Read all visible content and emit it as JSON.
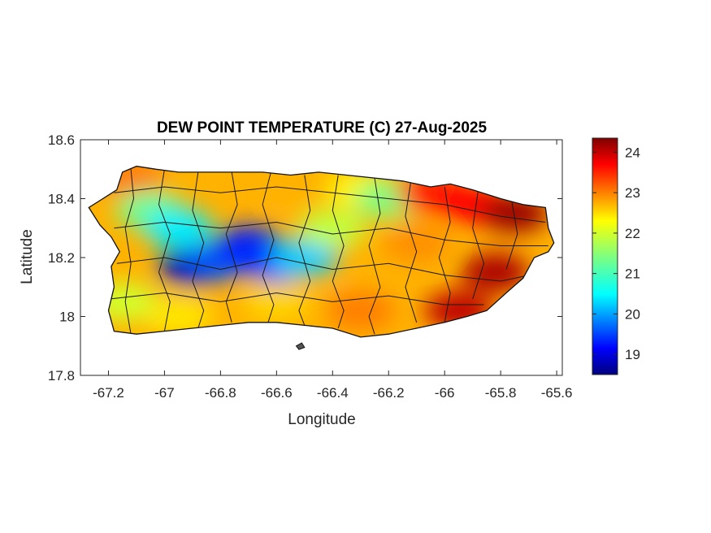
{
  "chart_data": {
    "type": "heatmap",
    "title": "DEW POINT TEMPERATURE (C) 27-Aug-2025",
    "xlabel": "Longitude",
    "ylabel": "Latitude",
    "xlim": [
      -67.3,
      -65.58
    ],
    "ylim": [
      17.8,
      18.6
    ],
    "x_ticks": [
      -67.2,
      -67,
      -66.8,
      -66.6,
      -66.4,
      -66.2,
      -66,
      -65.8,
      -65.6
    ],
    "x_tick_labels": [
      "-67.2",
      "-67",
      "-66.8",
      "-66.6",
      "-66.4",
      "-66.2",
      "-66",
      "-65.8",
      "-65.6"
    ],
    "y_ticks": [
      17.8,
      18,
      18.2,
      18.4,
      18.6
    ],
    "y_tick_labels": [
      "17.8",
      "18",
      "18.2",
      "18.4",
      "18.6"
    ],
    "colormap": "jet",
    "colorbar": {
      "range": [
        18.5,
        24.35
      ],
      "ticks": [
        19,
        20,
        21,
        22,
        23,
        24
      ],
      "tick_labels": [
        "19",
        "20",
        "21",
        "22",
        "23",
        "24"
      ]
    },
    "grid": false,
    "field_samples": [
      {
        "lon": -67.12,
        "lat": 18.47,
        "value": 22.9
      },
      {
        "lon": -67.05,
        "lat": 18.36,
        "value": 21.3
      },
      {
        "lon": -66.95,
        "lat": 18.3,
        "value": 20.6
      },
      {
        "lon": -66.9,
        "lat": 18.17,
        "value": 18.9
      },
      {
        "lon": -66.8,
        "lat": 18.19,
        "value": 19.7
      },
      {
        "lon": -66.7,
        "lat": 18.24,
        "value": 19.4
      },
      {
        "lon": -66.6,
        "lat": 18.18,
        "value": 19.5
      },
      {
        "lon": -66.5,
        "lat": 18.2,
        "value": 20.4
      },
      {
        "lon": -66.5,
        "lat": 18.45,
        "value": 22.6
      },
      {
        "lon": -66.3,
        "lat": 18.43,
        "value": 22.2
      },
      {
        "lon": -66.2,
        "lat": 18.4,
        "value": 21.4
      },
      {
        "lon": -66.05,
        "lat": 18.42,
        "value": 23.5
      },
      {
        "lon": -65.9,
        "lat": 18.38,
        "value": 23.6
      },
      {
        "lon": -65.75,
        "lat": 18.35,
        "value": 24.2
      },
      {
        "lon": -65.82,
        "lat": 18.15,
        "value": 24.1
      },
      {
        "lon": -65.95,
        "lat": 18.02,
        "value": 24.0
      },
      {
        "lon": -66.3,
        "lat": 18.02,
        "value": 22.9
      },
      {
        "lon": -66.6,
        "lat": 18.05,
        "value": 22.4
      },
      {
        "lon": -66.95,
        "lat": 18.0,
        "value": 22.3
      },
      {
        "lon": -67.15,
        "lat": 18.05,
        "value": 21.9
      },
      {
        "lon": -66.1,
        "lat": 18.25,
        "value": 22.8
      },
      {
        "lon": -66.4,
        "lat": 18.3,
        "value": 21.8
      }
    ]
  }
}
